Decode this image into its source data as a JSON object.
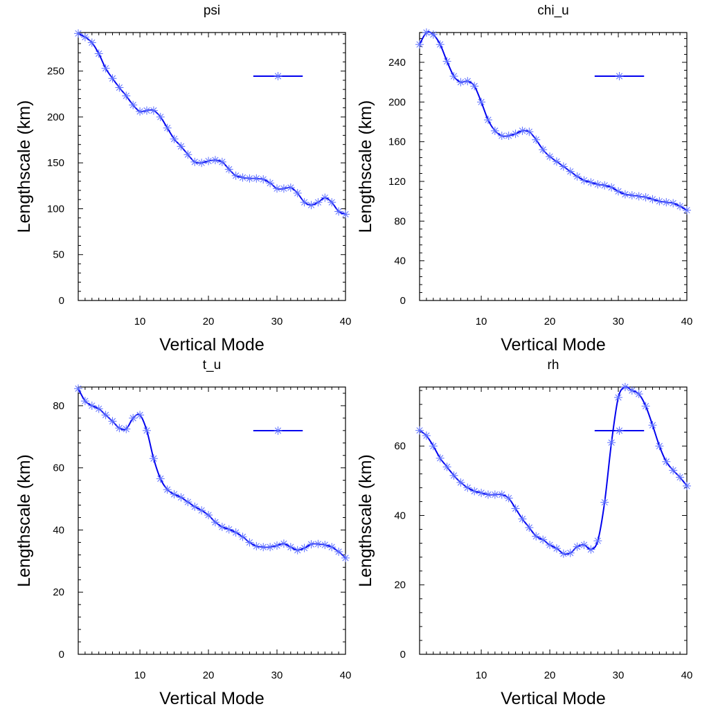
{
  "colors": {
    "series": "#0000ee",
    "marker": "#5a6cff",
    "frame": "#000000"
  },
  "chart_data": [
    {
      "type": "line",
      "title": "psi",
      "xlabel": "Vertical Mode",
      "ylabel": "Lengthscale (km)",
      "xlim": [
        1,
        40
      ],
      "ylim": [
        0,
        292
      ],
      "xticks": [
        10,
        20,
        30,
        40
      ],
      "xtick_labels": [
        "10",
        "20",
        "30",
        "40"
      ],
      "yticks": [
        0,
        50,
        100,
        150,
        200,
        250
      ],
      "ytick_labels": [
        "0",
        "50",
        "100",
        "150",
        "200",
        "250"
      ],
      "legend": "top-right",
      "series": [
        {
          "name": "",
          "x": [
            1,
            2,
            3,
            4,
            5,
            6,
            7,
            8,
            9,
            10,
            11,
            12,
            13,
            14,
            15,
            16,
            17,
            18,
            19,
            20,
            21,
            22,
            23,
            24,
            25,
            26,
            27,
            28,
            29,
            30,
            31,
            32,
            33,
            34,
            35,
            36,
            37,
            38,
            39,
            40
          ],
          "values": [
            291,
            287,
            281,
            269,
            253,
            242,
            232,
            223,
            213,
            206,
            207,
            207,
            200,
            188,
            176,
            168,
            159,
            151,
            150,
            152,
            153,
            151,
            143,
            136,
            134,
            133,
            133,
            132,
            128,
            122,
            122,
            123,
            117,
            107,
            104,
            107,
            112,
            107,
            97,
            94
          ]
        }
      ]
    },
    {
      "type": "line",
      "title": "chi_u",
      "xlabel": "Vertical Mode",
      "ylabel": "Lengthscale (km)",
      "xlim": [
        1,
        40
      ],
      "ylim": [
        0,
        270
      ],
      "xticks": [
        10,
        20,
        30,
        40
      ],
      "xtick_labels": [
        "10",
        "20",
        "30",
        "40"
      ],
      "yticks": [
        0,
        40,
        80,
        120,
        160,
        200,
        240
      ],
      "ytick_labels": [
        "0",
        "40",
        "80",
        "120",
        "160",
        "200",
        "240"
      ],
      "legend": "top-right",
      "series": [
        {
          "name": "",
          "x": [
            1,
            2,
            3,
            4,
            5,
            6,
            7,
            8,
            9,
            10,
            11,
            12,
            13,
            14,
            15,
            16,
            17,
            18,
            19,
            20,
            21,
            22,
            23,
            24,
            25,
            26,
            27,
            28,
            29,
            30,
            31,
            32,
            33,
            34,
            35,
            36,
            37,
            38,
            39,
            40
          ],
          "values": [
            258,
            270,
            268,
            258,
            241,
            226,
            220,
            221,
            216,
            200,
            182,
            171,
            166,
            166,
            168,
            171,
            170,
            162,
            152,
            145,
            140,
            135,
            130,
            125,
            121,
            119,
            117,
            116,
            114,
            110,
            107,
            106,
            105,
            104,
            102,
            100,
            99,
            98,
            95,
            91
          ]
        }
      ]
    },
    {
      "type": "line",
      "title": "t_u",
      "xlabel": "Vertical Mode",
      "ylabel": "Lengthscale (km)",
      "xlim": [
        1,
        40
      ],
      "ylim": [
        0,
        86
      ],
      "xticks": [
        10,
        20,
        30,
        40
      ],
      "xtick_labels": [
        "10",
        "20",
        "30",
        "40"
      ],
      "yticks": [
        0,
        20,
        40,
        60,
        80
      ],
      "ytick_labels": [
        "0",
        "20",
        "40",
        "60",
        "80"
      ],
      "legend": "top-right",
      "series": [
        {
          "name": "",
          "x": [
            1,
            2,
            3,
            4,
            5,
            6,
            7,
            8,
            9,
            10,
            11,
            12,
            13,
            14,
            15,
            16,
            17,
            18,
            19,
            20,
            21,
            22,
            23,
            24,
            25,
            26,
            27,
            28,
            29,
            30,
            31,
            32,
            33,
            34,
            35,
            36,
            37,
            38,
            39,
            40
          ],
          "values": [
            85.5,
            81.5,
            80,
            79,
            77,
            75,
            72.8,
            72.5,
            76,
            77,
            72,
            63,
            56.5,
            53,
            51.5,
            50.5,
            49,
            47.5,
            46.3,
            44.8,
            42.5,
            41,
            40.2,
            39.2,
            37.8,
            36,
            34.8,
            34.5,
            34.5,
            35,
            35.6,
            34.5,
            33.5,
            34.2,
            35.4,
            35.5,
            35.2,
            34.5,
            33,
            31
          ]
        }
      ]
    },
    {
      "type": "line",
      "title": "rh",
      "xlabel": "Vertical Mode",
      "ylabel": "Lengthscale (km)",
      "xlim": [
        1,
        40
      ],
      "ylim": [
        0,
        77
      ],
      "xticks": [
        10,
        20,
        30,
        40
      ],
      "xtick_labels": [
        "10",
        "20",
        "30",
        "40"
      ],
      "yticks": [
        0,
        20,
        40,
        60
      ],
      "ytick_labels": [
        "0",
        "20",
        "40",
        "60"
      ],
      "legend": "top-right",
      "series": [
        {
          "name": "",
          "x": [
            1,
            2,
            3,
            4,
            5,
            6,
            7,
            8,
            9,
            10,
            11,
            12,
            13,
            14,
            15,
            16,
            17,
            18,
            19,
            20,
            21,
            22,
            23,
            24,
            25,
            26,
            27,
            28,
            29,
            30,
            31,
            32,
            33,
            34,
            35,
            36,
            37,
            38,
            39,
            40
          ],
          "values": [
            64.5,
            63,
            60,
            56.5,
            54,
            51.5,
            49.5,
            48,
            47,
            46.5,
            46,
            46,
            46,
            45,
            42,
            39,
            36.5,
            34,
            33,
            31.5,
            30.5,
            29,
            29.2,
            31,
            31.5,
            30.2,
            32.7,
            43.8,
            61,
            74,
            77,
            76,
            75,
            71.5,
            66,
            60,
            55.5,
            53,
            51,
            48.5
          ]
        }
      ]
    }
  ]
}
